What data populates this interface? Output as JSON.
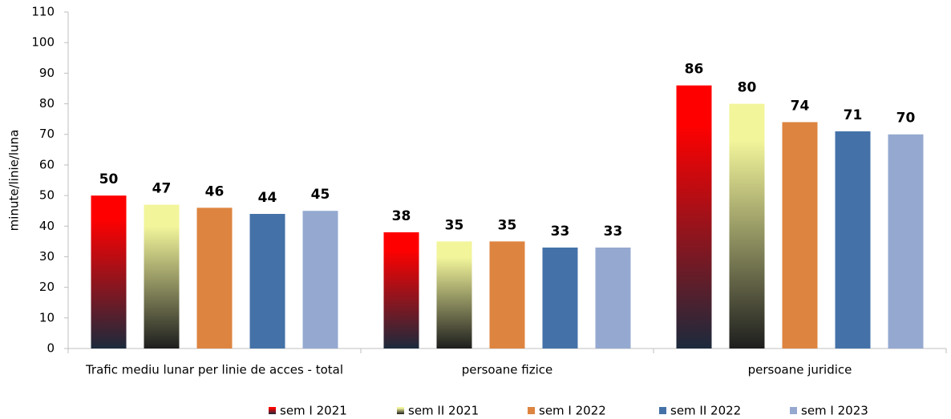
{
  "chart_data": {
    "type": "bar",
    "y_label": "minute/linie/luna",
    "categories": [
      "Trafic mediu lunar per linie de acces - total",
      "persoane fizice",
      "persoane juridice"
    ],
    "series": [
      {
        "name": "sem I 2021",
        "color": "#ff0000",
        "gradient_to": "#1c2a3c",
        "values": [
          50,
          38,
          86
        ]
      },
      {
        "name": "sem II 2021",
        "color": "#f2f59a",
        "gradient_to": "#1e1e1e",
        "values": [
          47,
          35,
          80
        ]
      },
      {
        "name": "sem I 2022",
        "color": "#dd8440",
        "values": [
          46,
          35,
          74
        ]
      },
      {
        "name": "sem II 2022",
        "color": "#4472a8",
        "values": [
          44,
          33,
          71
        ]
      },
      {
        "name": "sem I 2023",
        "color": "#95a9d0",
        "values": [
          45,
          33,
          70
        ]
      }
    ],
    "ylim": [
      0,
      110
    ],
    "yticks": [
      0,
      10,
      20,
      30,
      40,
      50,
      60,
      70,
      80,
      90,
      100,
      110
    ],
    "grid": false,
    "legend": "bottom"
  }
}
